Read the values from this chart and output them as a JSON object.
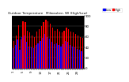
{
  "title": "Outdoor Temperature   Milwaukee, WI (High/Low)",
  "background_color": "#ffffff",
  "plot_bg_color": "#000000",
  "high_color": "#ff0000",
  "low_color": "#0000ff",
  "legend_high": "High",
  "legend_low": "Low",
  "highs": [
    52,
    62,
    82,
    55,
    90,
    88,
    72,
    68,
    62,
    60,
    70,
    75,
    80,
    88,
    92,
    90,
    85,
    78,
    72,
    74,
    70,
    68,
    72,
    78,
    75,
    70,
    68,
    65,
    62,
    60,
    58
  ],
  "lows": [
    38,
    45,
    55,
    35,
    60,
    62,
    50,
    42,
    40,
    38,
    44,
    48,
    52,
    58,
    65,
    60,
    56,
    50,
    46,
    48,
    44,
    42,
    46,
    52,
    50,
    44,
    42,
    40,
    37,
    35,
    32
  ],
  "ylim_min": 0,
  "ylim_max": 100,
  "ytick_values": [
    0,
    20,
    40,
    60,
    80,
    100
  ],
  "ytick_labels": [
    "0",
    "20",
    "40",
    "60",
    "80",
    "100"
  ]
}
